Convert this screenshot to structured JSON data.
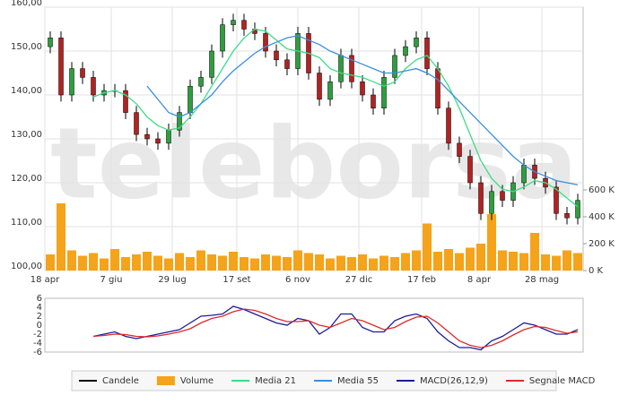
{
  "chart_data": [
    {
      "type": "candlestick",
      "watermark": "teleborsa",
      "x": [
        3,
        9,
        15,
        21,
        27,
        33,
        39,
        45,
        51,
        57,
        63,
        69,
        75,
        81,
        87,
        93,
        99,
        105,
        111,
        117,
        123,
        129,
        135,
        141,
        147,
        153,
        159,
        165,
        171,
        177,
        183,
        189,
        195,
        201,
        207,
        213,
        219,
        225,
        231,
        237,
        243,
        249,
        255,
        261,
        267,
        273,
        279,
        285,
        291,
        297
      ],
      "xlim": [
        0,
        300
      ],
      "xticks": [
        {
          "value": 0,
          "label": "18 apr"
        },
        {
          "value": 37,
          "label": "7 giu"
        },
        {
          "value": 71,
          "label": "29 lug"
        },
        {
          "value": 107,
          "label": "17 set"
        },
        {
          "value": 141,
          "label": "6 nov"
        },
        {
          "value": 175,
          "label": "27 dic"
        },
        {
          "value": 210,
          "label": "17 feb"
        },
        {
          "value": 242,
          "label": "8 apr"
        },
        {
          "value": 277,
          "label": "28 mag"
        }
      ],
      "ylim": [
        100,
        160
      ],
      "yticks": [
        {
          "value": 100,
          "label": "100,00"
        },
        {
          "value": 110,
          "label": "110,00"
        },
        {
          "value": 120,
          "label": "120,00"
        },
        {
          "value": 130,
          "label": "130,00"
        },
        {
          "value": 140,
          "label": "140,00"
        },
        {
          "value": 150,
          "label": "150,00"
        },
        {
          "value": 160,
          "label": "160,00"
        }
      ],
      "y2lim": [
        0,
        1960000
      ],
      "y2ticks": [
        {
          "value": 0,
          "label": "0 K"
        },
        {
          "value": 200000,
          "label": "200 K"
        },
        {
          "value": 400000,
          "label": "400 K"
        },
        {
          "value": 600000,
          "label": "600 K"
        }
      ],
      "grid": true,
      "series": [
        {
          "name": "Candele",
          "color": "#000000",
          "up_color": "#2e9e3e",
          "down_color": "#b22222",
          "open": [
            151,
            153,
            140,
            146,
            144,
            140,
            141,
            141,
            136,
            131,
            130,
            129,
            132,
            136,
            142,
            144,
            150,
            156,
            157,
            155,
            154,
            150,
            148,
            146,
            154,
            145,
            139,
            143,
            149,
            143,
            140,
            137,
            144,
            149,
            151,
            153,
            146,
            137,
            129,
            126,
            120,
            113,
            118,
            116,
            120,
            124,
            121,
            119,
            113,
            112
          ],
          "high": [
            154.5,
            154.5,
            147.5,
            147.5,
            145.5,
            142.5,
            142.5,
            142.5,
            137.5,
            132.5,
            131.5,
            133.5,
            137.5,
            143.5,
            145.5,
            151.5,
            157.5,
            158.5,
            158.5,
            156.5,
            155.5,
            151.5,
            149.5,
            155.5,
            155.5,
            146.5,
            144.5,
            150.5,
            150.5,
            144.5,
            141.5,
            145.5,
            150.5,
            152.5,
            154.5,
            154.5,
            147.5,
            138.5,
            130.5,
            127.5,
            121.5,
            119.5,
            119.5,
            121.5,
            125.5,
            125.5,
            122.5,
            120.5,
            114.5,
            117.5
          ],
          "low": [
            149.5,
            138.5,
            138.5,
            142.5,
            138.5,
            138.5,
            139.5,
            134.5,
            129.5,
            128.5,
            127.5,
            127.5,
            130.5,
            134.5,
            140.5,
            142.5,
            148.5,
            154.5,
            153.5,
            152.5,
            148.5,
            146.5,
            144.5,
            144.5,
            143.5,
            137.5,
            137.5,
            141.5,
            141.5,
            138.5,
            135.5,
            135.5,
            142.5,
            147.5,
            149.5,
            144.5,
            135.5,
            127.5,
            124.5,
            118.5,
            111.5,
            111.5,
            114.5,
            114.5,
            118.5,
            119.5,
            117.5,
            111.5,
            110.5,
            110.5
          ],
          "close": [
            153,
            140,
            146,
            144,
            140,
            141,
            141,
            136,
            131,
            130,
            129,
            132,
            136,
            142,
            144,
            150,
            156,
            157,
            155,
            154,
            150,
            148,
            146,
            154,
            145,
            139,
            143,
            149,
            143,
            140,
            137,
            144,
            149,
            151,
            153,
            146,
            137,
            129,
            126,
            120,
            113,
            118,
            116,
            120,
            124,
            121,
            119,
            113,
            112,
            116
          ]
        },
        {
          "name": "Volume",
          "color": "#f5a31a",
          "axis": "y2",
          "values": [
            120000,
            500000,
            150000,
            110000,
            130000,
            90000,
            160000,
            100000,
            120000,
            140000,
            110000,
            90000,
            130000,
            100000,
            150000,
            120000,
            110000,
            140000,
            100000,
            90000,
            120000,
            110000,
            100000,
            150000,
            130000,
            120000,
            90000,
            110000,
            100000,
            120000,
            90000,
            110000,
            100000,
            130000,
            150000,
            350000,
            140000,
            160000,
            130000,
            170000,
            200000,
            420000,
            150000,
            140000,
            130000,
            280000,
            120000,
            110000,
            150000,
            130000
          ]
        },
        {
          "name": "Media 21",
          "color": "#3ddc84",
          "values": [
            null,
            null,
            null,
            null,
            139.5,
            140.5,
            141,
            140,
            138,
            135,
            133,
            132,
            132.5,
            135,
            138,
            142,
            146,
            150,
            153,
            155,
            154.5,
            152.5,
            150.5,
            150,
            149.5,
            148.5,
            146,
            145,
            144.5,
            144,
            143,
            142,
            143,
            146,
            148,
            149,
            146,
            142,
            137,
            131,
            125,
            121,
            118.5,
            118,
            119,
            120.5,
            120,
            118.5,
            116.5,
            114.5
          ]
        },
        {
          "name": "Media 55",
          "color": "#3a8ee0",
          "values": [
            null,
            null,
            null,
            null,
            null,
            null,
            null,
            null,
            null,
            142,
            139,
            136,
            135,
            136,
            138,
            140,
            143,
            145.5,
            147.5,
            149.5,
            151,
            152,
            153,
            153.5,
            152.5,
            151.5,
            150,
            149,
            148,
            147,
            146,
            145,
            145,
            145.5,
            146,
            145,
            143.5,
            141,
            138.5,
            136,
            133.5,
            131,
            128.5,
            126,
            124,
            122.5,
            121.5,
            120.5,
            120,
            119.5
          ]
        }
      ]
    },
    {
      "type": "line",
      "ylim": [
        -6,
        6
      ],
      "yticks": [
        -6,
        -4,
        -2,
        0,
        2,
        4,
        6
      ],
      "grid": false,
      "series": [
        {
          "name": "MACD(26,12,9)",
          "color": "#1c1c9c",
          "values": [
            null,
            null,
            null,
            null,
            -2.5,
            -2,
            -1.5,
            -2.5,
            -3,
            -2.5,
            -2,
            -1.5,
            -1,
            0.5,
            2,
            2.2,
            2.5,
            4.2,
            3.5,
            2.5,
            1.5,
            0.5,
            0,
            1.5,
            1,
            -2,
            -0.5,
            2.5,
            2.5,
            -0.5,
            -1.5,
            -1.5,
            1,
            2,
            2.5,
            1.5,
            -1.5,
            -3.5,
            -5,
            -5,
            -5.5,
            -3.5,
            -2.5,
            -1,
            0.5,
            0,
            -1,
            -2,
            -2,
            -1
          ]
        },
        {
          "name": "Segnale MACD",
          "color": "#dd2a2a",
          "values": [
            null,
            null,
            null,
            null,
            -2.5,
            -2.3,
            -2,
            -2.1,
            -2.5,
            -2.6,
            -2.4,
            -2,
            -1.5,
            -0.8,
            0.5,
            1.5,
            2,
            3,
            3.6,
            3.3,
            2.5,
            1.5,
            0.8,
            0.8,
            1,
            0,
            -0.5,
            0.5,
            1.5,
            1,
            0,
            -1,
            -0.5,
            0.8,
            1.8,
            2,
            0.5,
            -1.5,
            -3.5,
            -4.5,
            -5,
            -4.5,
            -3.5,
            -2.2,
            -1,
            -0.3,
            -0.5,
            -1.2,
            -1.8,
            -1.5
          ]
        }
      ]
    }
  ]
}
